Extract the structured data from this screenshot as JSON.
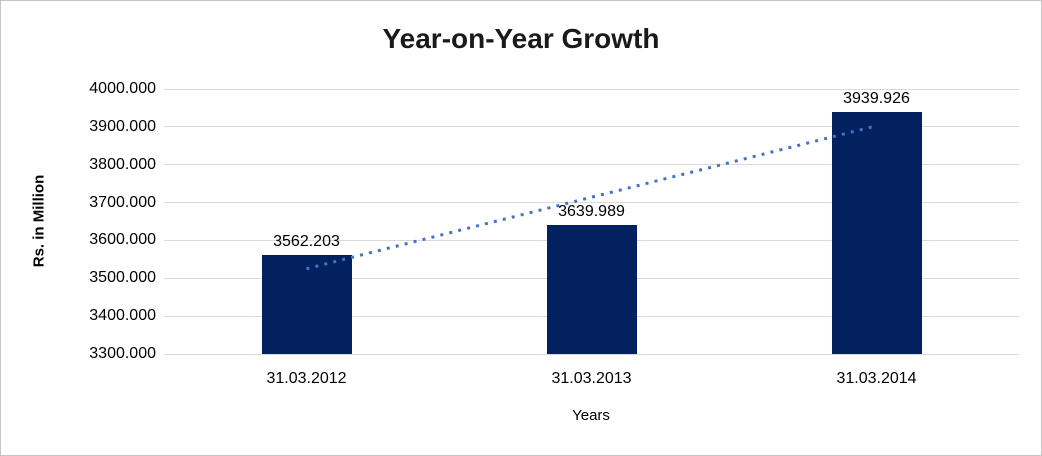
{
  "chart_data": {
    "type": "bar",
    "title": "Year-on-Year Growth",
    "categories": [
      "31.03.2012",
      "31.03.2013",
      "31.03.2014"
    ],
    "values": [
      3562.203,
      3639.989,
      3939.926
    ],
    "data_labels": [
      "3562.203",
      "3639.989",
      "3939.926"
    ],
    "xlabel": "Years",
    "ylabel": "Rs. in Million",
    "ylim": [
      3300,
      4000
    ],
    "ytick_step": 100,
    "ytick_labels": [
      "3300.000",
      "3400.000",
      "3500.000",
      "3600.000",
      "3700.000",
      "3800.000",
      "3900.000",
      "4000.000"
    ],
    "grid": true,
    "legend": false,
    "trendline": {
      "type": "linear",
      "style": "dotted"
    }
  },
  "colors": {
    "bar": "#02215e",
    "trendline": "#4472c4",
    "gridline": "#d9d9d9",
    "title_text": "#1a1a1a",
    "axis_text": "#000000",
    "frame_border": "#c6c6c6"
  }
}
